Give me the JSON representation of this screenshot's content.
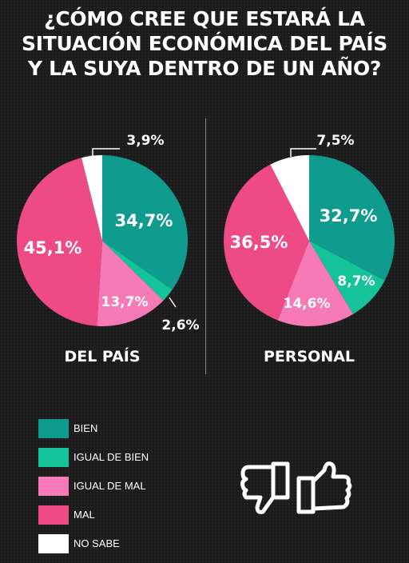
{
  "title_lines": [
    "¿CÓMO CREE QUE ESTARÁ LA",
    "SITUACIÓN ECONÓMICA DEL PAÍS",
    "Y LA SUYA DENTRO DE UN AÑO?"
  ],
  "colors": {
    "bien": "#0f9b8e",
    "igual_bien": "#14c39a",
    "igual_mal": "#f57ab5",
    "mal": "#ee4a85",
    "no_sabe": "#ffffff"
  },
  "chart_data": [
    {
      "type": "pie",
      "title": "DEL PAÍS",
      "slices": [
        {
          "key": "bien",
          "label": "BIEN",
          "value": 34.7,
          "text": "34,7%"
        },
        {
          "key": "igual_bien",
          "label": "IGUAL DE BIEN",
          "value": 2.6,
          "text": "2,6%"
        },
        {
          "key": "igual_mal",
          "label": "IGUAL DE MAL",
          "value": 13.7,
          "text": "13,7%"
        },
        {
          "key": "mal",
          "label": "MAL",
          "value": 45.1,
          "text": "45,1%"
        },
        {
          "key": "no_sabe",
          "label": "NO SABE",
          "value": 3.9,
          "text": "3,9%"
        }
      ]
    },
    {
      "type": "pie",
      "title": "PERSONAL",
      "slices": [
        {
          "key": "bien",
          "label": "BIEN",
          "value": 32.7,
          "text": "32,7%"
        },
        {
          "key": "igual_bien",
          "label": "IGUAL DE BIEN",
          "value": 8.7,
          "text": "8,7%"
        },
        {
          "key": "igual_mal",
          "label": "IGUAL DE MAL",
          "value": 14.6,
          "text": "14,6%"
        },
        {
          "key": "mal",
          "label": "MAL",
          "value": 36.5,
          "text": "36,5%"
        },
        {
          "key": "no_sabe",
          "label": "NO SABE",
          "value": 7.5,
          "text": "7,5%"
        }
      ]
    }
  ],
  "legend": [
    {
      "key": "bien",
      "label": "BIEN"
    },
    {
      "key": "igual_bien",
      "label": "IGUAL DE BIEN"
    },
    {
      "key": "igual_mal",
      "label": "IGUAL DE MAL"
    },
    {
      "key": "mal",
      "label": "MAL"
    },
    {
      "key": "no_sabe",
      "label": "NO SABE"
    }
  ],
  "icons": [
    "thumbs-down-icon",
    "thumbs-up-icon"
  ]
}
